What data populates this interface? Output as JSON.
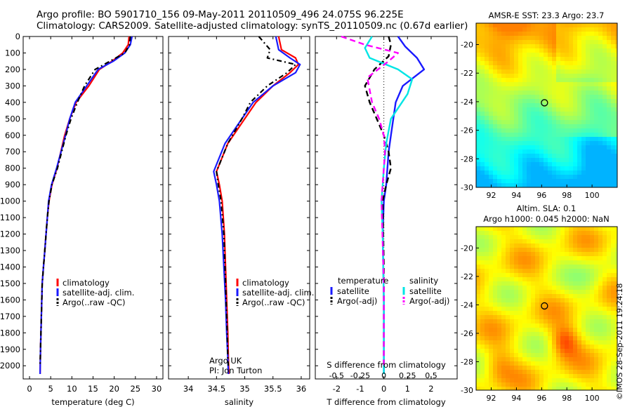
{
  "header": {
    "title_line1": "Argo profile: BO 5901710_156 09-May-2011 20110509_496 24.075S 96.225E",
    "title_line2": "Climatology: CARS2009. Satellite-adjusted climatology: synTS_20110509.nc (0.67d earlier)"
  },
  "colors": {
    "climatology": "#ff0000",
    "satellite": "#1a1aff",
    "argo": "#000000",
    "sal_satellite": "#00e5e5",
    "sal_argo": "#ff00ff"
  },
  "chart_data": [
    {
      "id": "temperature",
      "type": "line",
      "xlabel": "temperature (deg C)",
      "ylabel": "",
      "xlim": [
        -1.5,
        31.5
      ],
      "ylim": [
        2080,
        0
      ],
      "xticks": [
        0,
        5,
        10,
        15,
        20,
        25,
        30
      ],
      "yticks": [
        0,
        100,
        200,
        300,
        400,
        500,
        600,
        700,
        800,
        900,
        1000,
        1100,
        1200,
        1300,
        1400,
        1500,
        1600,
        1700,
        1800,
        1900,
        2000
      ],
      "legend": {
        "placement": "lower-left",
        "entries": [
          "climatology",
          "satellite-adj. clim.",
          "Argo(..raw -QC)"
        ]
      },
      "series": [
        {
          "name": "climatology",
          "color": "#ff0000",
          "x": [
            23.5,
            23.3,
            22.0,
            19.5,
            16.5,
            14.0,
            11.0,
            9.5,
            8.3,
            6.5,
            5.3,
            4.6,
            4.2,
            3.9,
            3.6,
            3.3,
            3.0,
            2.8,
            2.6,
            2.5
          ],
          "y": [
            0,
            50,
            100,
            150,
            200,
            300,
            400,
            500,
            600,
            800,
            900,
            1000,
            1100,
            1200,
            1300,
            1400,
            1500,
            1700,
            1900,
            2050
          ]
        },
        {
          "name": "satellite-adj. clim.",
          "color": "#1a1aff",
          "x": [
            24.2,
            23.8,
            22.5,
            19.8,
            16.2,
            13.5,
            10.8,
            9.5,
            8.5,
            6.4,
            5.2,
            4.5,
            4.2,
            3.9,
            3.6,
            3.3,
            3.0,
            2.8,
            2.6,
            2.5
          ],
          "y": [
            0,
            50,
            100,
            150,
            200,
            300,
            400,
            500,
            600,
            800,
            900,
            1000,
            1100,
            1200,
            1300,
            1400,
            1500,
            1700,
            1900,
            2050
          ]
        },
        {
          "name": "Argo(..raw -QC)",
          "color": "#000000",
          "dash": true,
          "x": [
            23.8,
            23.6,
            22.5,
            19.0,
            15.5,
            13.0,
            11.3,
            9.8,
            8.6,
            6.6,
            5.3,
            4.6,
            4.2,
            3.9,
            3.6,
            3.3,
            3.0,
            2.8,
            2.6,
            2.5
          ],
          "y": [
            0,
            50,
            100,
            150,
            200,
            300,
            400,
            500,
            600,
            800,
            900,
            1000,
            1100,
            1200,
            1300,
            1400,
            1500,
            1700,
            1900,
            2000
          ]
        }
      ]
    },
    {
      "id": "salinity",
      "type": "line",
      "xlabel": "salinity",
      "ylabel": "",
      "xlim": [
        33.65,
        36.15
      ],
      "ylim": [
        2080,
        0
      ],
      "xticks": [
        34,
        34.5,
        35,
        35.5,
        36
      ],
      "xticklabels": [
        "34",
        "34.5",
        "35",
        "35.5",
        "36"
      ],
      "legend": {
        "placement": "lower-left",
        "entries": [
          "climatology",
          "satellite-adj. clim.",
          "Argo(..raw -QC)"
        ]
      },
      "annotation": [
        "Argo UK",
        "PI: Jon Turton"
      ],
      "series": [
        {
          "name": "climatology",
          "color": "#ff0000",
          "x": [
            35.6,
            35.65,
            35.9,
            35.95,
            35.8,
            35.5,
            35.2,
            35.0,
            34.7,
            34.5,
            34.55,
            34.6,
            34.64,
            34.66,
            34.68,
            34.7,
            34.71,
            34.72
          ],
          "y": [
            0,
            80,
            130,
            170,
            220,
            300,
            400,
            500,
            650,
            820,
            900,
            1000,
            1200,
            1400,
            1600,
            1800,
            1950,
            2050
          ]
        },
        {
          "name": "satellite-adj. clim.",
          "color": "#1a1aff",
          "x": [
            35.55,
            35.6,
            35.8,
            35.98,
            35.9,
            35.5,
            35.15,
            34.95,
            34.65,
            34.45,
            34.5,
            34.55,
            34.6,
            34.63,
            34.66,
            34.68,
            34.7,
            34.71
          ],
          "y": [
            0,
            80,
            130,
            170,
            220,
            300,
            400,
            500,
            650,
            820,
            900,
            1000,
            1200,
            1400,
            1600,
            1800,
            1950,
            2050
          ]
        },
        {
          "name": "Argo(..raw -QC)",
          "color": "#000000",
          "dash": true,
          "x": [
            35.25,
            35.45,
            35.4,
            35.9,
            35.75,
            35.4,
            35.1,
            34.95,
            34.7,
            34.5,
            34.53,
            34.58,
            34.63,
            34.65,
            34.67,
            34.69,
            34.7,
            34.71
          ],
          "y": [
            0,
            80,
            130,
            170,
            220,
            300,
            400,
            500,
            650,
            820,
            900,
            1000,
            1200,
            1400,
            1600,
            1800,
            1950,
            2000
          ]
        }
      ]
    },
    {
      "id": "difference",
      "type": "line",
      "xlabel": "T difference from climatology",
      "xlabel_top": "S difference from climatology",
      "ylabel": "",
      "xlim": [
        -2.9,
        3.1
      ],
      "ylim": [
        2080,
        0
      ],
      "xticks": [
        -2,
        -1,
        0,
        1,
        2
      ],
      "sticks": [
        -2,
        -1,
        0,
        1,
        2
      ],
      "sticklabels": [
        "-0.5",
        "-0.25",
        "0",
        "0.25",
        "0.5"
      ],
      "legend": {
        "placement": "lower-center",
        "group_titles": [
          "temperature",
          "salinity"
        ],
        "entries": [
          "satellite",
          "Argo(-adj)",
          "satellite",
          "Argo(-adj)"
        ]
      },
      "series": [
        {
          "name": "temperature satellite",
          "color": "#1a1aff",
          "x": [
            0.6,
            0.9,
            1.4,
            1.7,
            0.8,
            0.5,
            0.4,
            0.3,
            0.2,
            0.15,
            0.1,
            0.0,
            -0.05,
            0.0,
            0.0
          ],
          "y": [
            0,
            60,
            130,
            200,
            300,
            400,
            500,
            600,
            700,
            800,
            900,
            1000,
            1200,
            1600,
            2050
          ]
        },
        {
          "name": "temperature Argo(-adj)",
          "color": "#000000",
          "dash": true,
          "x": [
            0.2,
            0.3,
            0.2,
            -0.4,
            -0.8,
            -0.6,
            -0.3,
            0.0,
            0.2,
            0.3,
            0.1,
            -0.05,
            0.0,
            0.0
          ],
          "y": [
            0,
            50,
            120,
            200,
            300,
            400,
            500,
            600,
            700,
            800,
            900,
            1000,
            1400,
            2000
          ]
        },
        {
          "name": "salinity satellite",
          "color": "#00e5e5",
          "x": [
            -0.5,
            -0.8,
            -0.6,
            0.6,
            1.2,
            1.0,
            0.3,
            0.1,
            0.0,
            -0.05,
            -0.1,
            -0.05,
            0.0,
            0.0
          ],
          "y": [
            0,
            70,
            130,
            200,
            260,
            350,
            500,
            650,
            800,
            900,
            1000,
            1200,
            1600,
            2050
          ]
        },
        {
          "name": "salinity Argo(-adj)",
          "color": "#ff00ff",
          "dash": true,
          "x": [
            -1.8,
            -0.8,
            0.6,
            0.2,
            -0.7,
            -0.5,
            -0.2,
            0.0,
            0.05,
            0.0,
            -0.1,
            0.0,
            0.0
          ],
          "y": [
            0,
            50,
            100,
            150,
            250,
            400,
            500,
            600,
            700,
            800,
            1000,
            1500,
            2000
          ]
        }
      ]
    },
    {
      "id": "sst_map",
      "type": "heatmap",
      "title": "AMSR-E SST: 23.3 Argo: 23.7",
      "xlim": [
        90.8,
        102.0
      ],
      "ylim": [
        -30,
        -18.5
      ],
      "xticks": [
        92,
        94,
        96,
        98,
        100
      ],
      "yticks": [
        -20,
        -22,
        -24,
        -26,
        -28,
        -30
      ],
      "marker": {
        "lon": 96.225,
        "lat": -24.075
      }
    },
    {
      "id": "sla_map",
      "type": "heatmap",
      "title_line1": "Altim. SLA: 0.1",
      "title_line2": "Argo h1000: 0.045 h2000: NaN",
      "xlim": [
        90.8,
        102.0
      ],
      "ylim": [
        -30,
        -18.5
      ],
      "xticks": [
        92,
        94,
        96,
        98,
        100
      ],
      "yticks": [
        -20,
        -22,
        -24,
        -26,
        -28,
        -30
      ],
      "marker": {
        "lon": 96.225,
        "lat": -24.075
      }
    }
  ],
  "footer": {
    "credit": "©IMOS 28-Sep-2011 19:24:18"
  }
}
